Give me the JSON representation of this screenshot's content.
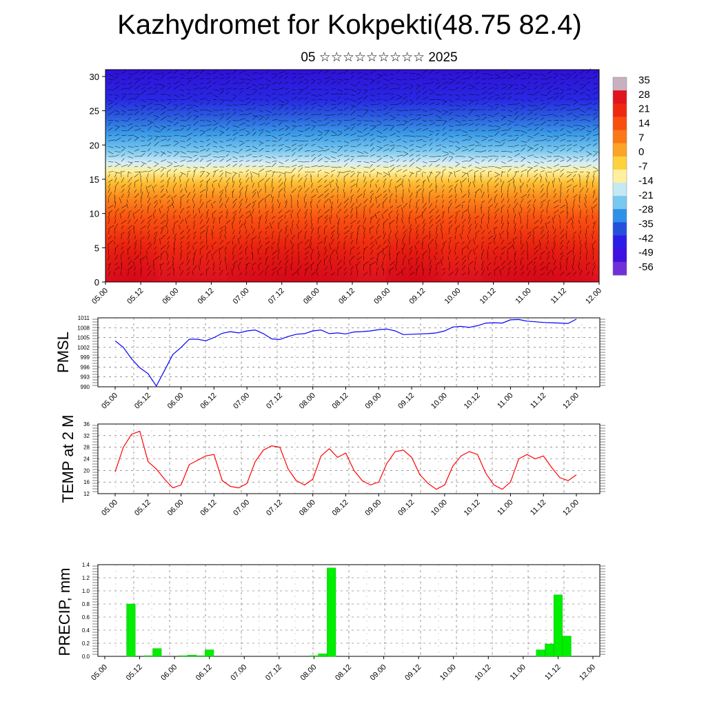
{
  "header": {
    "title": "Kazhydromet for Kokpekti(48.75 82.4)",
    "date_line": "05 ☆☆☆☆☆☆☆☆☆ 2025"
  },
  "time_labels": [
    "05.00",
    "05.12",
    "06.00",
    "06.12",
    "07.00",
    "07.12",
    "08.00",
    "08.12",
    "09.00",
    "09.12",
    "10.00",
    "10.12",
    "11.00",
    "11.12",
    "12.00"
  ],
  "colors": {
    "pmsl_line": "#0000ff",
    "temp_line": "#ff0000",
    "precip_bar": "#00ee00"
  },
  "chart_data": [
    {
      "type": "heatmap",
      "description_role": "cross-section",
      "ylim": [
        0,
        31
      ],
      "yticks": [
        0,
        5,
        10,
        15,
        20,
        25,
        30
      ],
      "x_ticks": [
        "05.00",
        "05.12",
        "06.00",
        "06.12",
        "07.00",
        "07.12",
        "08.00",
        "08.12",
        "09.00",
        "09.12",
        "10.00",
        "10.12",
        "11.00",
        "11.12",
        "12.00"
      ],
      "colorbar_labels": [
        "35",
        "28",
        "21",
        "14",
        "7",
        "0",
        "-7",
        "-14",
        "-21",
        "-28",
        "-35",
        "-42",
        "-49",
        "-56"
      ],
      "colorbar_colors": [
        "#c8b0c0",
        "#e0141c",
        "#ee2810",
        "#f84e10",
        "#fa7818",
        "#fca428",
        "#fdd23c",
        "#fff0a0",
        "#c4e8f4",
        "#78c8f0",
        "#2e90e8",
        "#2450dc",
        "#2c1ce8",
        "#4010e0",
        "#7030d8"
      ],
      "vectors": "wind barbs overlay"
    },
    {
      "type": "line",
      "ylabel": "PMSL",
      "ylim": [
        990,
        1011
      ],
      "yticks": [
        990,
        993,
        996,
        999,
        1002,
        1005,
        1008,
        1011
      ],
      "x_ticks": [
        "05.00",
        "05.12",
        "06.00",
        "06.12",
        "07.00",
        "07.12",
        "08.00",
        "08.12",
        "09.00",
        "09.12",
        "10.00",
        "10.12",
        "11.00",
        "11.12",
        "12.00"
      ],
      "series": [
        {
          "x": [
            0,
            3,
            6,
            9,
            12,
            15,
            18,
            21,
            24,
            27,
            30,
            33,
            36,
            39,
            42,
            45,
            48,
            51,
            54,
            57,
            60,
            63,
            66,
            69,
            72,
            75,
            78,
            81,
            84,
            87,
            90,
            93,
            96,
            99,
            102,
            105,
            108,
            111,
            114,
            117,
            120,
            123,
            126,
            129,
            132,
            135,
            138,
            141,
            144,
            147,
            150,
            153,
            156,
            159,
            162,
            165,
            168
          ],
          "values": [
            1004.0,
            1002.0,
            998.5,
            995.8,
            994.0,
            990.2,
            995.0,
            999.8,
            1002.0,
            1004.5,
            1004.5,
            1004.0,
            1005.0,
            1006.3,
            1006.8,
            1006.4,
            1007.0,
            1007.3,
            1006.2,
            1004.6,
            1004.4,
            1005.3,
            1006.0,
            1006.2,
            1007.0,
            1007.3,
            1006.2,
            1006.4,
            1006.1,
            1006.7,
            1006.8,
            1007.0,
            1007.4,
            1007.6,
            1007.0,
            1005.9,
            1006.0,
            1006.1,
            1006.2,
            1006.4,
            1007.0,
            1008.2,
            1008.4,
            1008.1,
            1008.6,
            1009.4,
            1009.5,
            1009.4,
            1010.4,
            1010.5,
            1010.0,
            1009.8,
            1009.6,
            1009.5,
            1009.4,
            1009.3,
            1010.6
          ]
        }
      ]
    },
    {
      "type": "line",
      "ylabel": "TEMP at 2 M",
      "ylim": [
        12,
        36
      ],
      "yticks": [
        12,
        16,
        20,
        24,
        28,
        32,
        36
      ],
      "x_ticks": [
        "05.00",
        "05.12",
        "06.00",
        "06.12",
        "07.00",
        "07.12",
        "08.00",
        "08.12",
        "09.00",
        "09.12",
        "10.00",
        "10.12",
        "11.00",
        "11.12",
        "12.00"
      ],
      "series": [
        {
          "x": [
            0,
            3,
            6,
            9,
            12,
            15,
            18,
            21,
            24,
            27,
            30,
            33,
            36,
            39,
            42,
            45,
            48,
            51,
            54,
            57,
            60,
            63,
            66,
            69,
            72,
            75,
            78,
            81,
            84,
            87,
            90,
            93,
            96,
            99,
            102,
            105,
            108,
            111,
            114,
            117,
            120,
            123,
            126,
            129,
            132,
            135,
            138,
            141,
            144,
            147,
            150,
            153,
            156,
            159,
            162,
            165,
            168
          ],
          "values": [
            19.5,
            28.0,
            32.5,
            33.5,
            23.0,
            20.5,
            17.0,
            14.0,
            15.0,
            22.0,
            23.5,
            25.0,
            25.5,
            16.5,
            14.5,
            14.0,
            15.5,
            23.0,
            27.0,
            28.5,
            28.0,
            20.5,
            16.5,
            15.0,
            17.0,
            25.0,
            27.5,
            24.5,
            26.0,
            20.0,
            16.5,
            15.0,
            16.0,
            22.5,
            26.5,
            27.0,
            24.5,
            18.5,
            15.5,
            13.5,
            15.0,
            21.5,
            25.0,
            26.5,
            25.5,
            19.0,
            15.0,
            13.5,
            16.0,
            24.0,
            25.5,
            24.0,
            25.0,
            21.0,
            17.5,
            16.5,
            18.5
          ]
        }
      ]
    },
    {
      "type": "bar",
      "ylabel": "PRECIP, mm",
      "ylim": [
        0,
        1.4
      ],
      "yticks": [
        0.0,
        0.2,
        0.4,
        0.6,
        0.8,
        1.0,
        1.2,
        1.4
      ],
      "ytick_labels": [
        "0.0",
        "0.2",
        "0.4",
        "0.6",
        "0.8",
        "1.0",
        "1.2",
        "1.4"
      ],
      "x_ticks": [
        "05.00",
        "05.12",
        "06.00",
        "06.12",
        "07.00",
        "07.12",
        "08.00",
        "08.12",
        "09.00",
        "09.12",
        "10.00",
        "10.12",
        "11.00",
        "11.12",
        "12.00"
      ],
      "bar_width_hours": 3,
      "x": [
        9,
        15,
        18,
        24,
        27,
        30,
        33,
        36,
        39,
        42,
        45,
        48,
        51,
        54,
        57,
        60,
        63,
        66,
        69,
        72,
        75,
        78,
        81,
        84,
        87,
        90,
        93,
        96,
        99,
        102,
        105,
        108,
        111,
        114,
        117,
        120,
        123,
        126,
        129,
        132,
        135,
        138,
        141,
        144,
        147,
        150,
        153,
        156,
        159,
        162
      ],
      "values": [
        0.8,
        0.01,
        0.12,
        0.0,
        0.01,
        0.02,
        0.01,
        0.1,
        0.0,
        0.0,
        0.0,
        0.0,
        0.0,
        0.0,
        0.0,
        0.0,
        0.0,
        0.0,
        0.0,
        0.01,
        0.04,
        1.35,
        0.0,
        0.0,
        0.0,
        0.0,
        0.0,
        0.0,
        0.0,
        0.0,
        0.0,
        0.0,
        0.0,
        0.0,
        0.0,
        0.0,
        0.0,
        0.0,
        0.0,
        0.0,
        0.0,
        0.0,
        0.0,
        0.0,
        0.0,
        0.1,
        0.19,
        0.94,
        0.31,
        0.0
      ]
    }
  ]
}
